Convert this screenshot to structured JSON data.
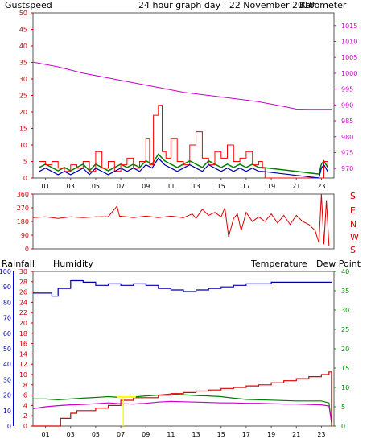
{
  "title": "24 hour graph day : 22 November 2010",
  "labels": {
    "gustspeed": "Gustspeed",
    "barometer": "Barometer",
    "rainfall": "Rainfall",
    "humidity": "Humidity",
    "temperature": "Temperature",
    "dew_point": "Dew Point",
    "compass": [
      "S",
      "E",
      "N",
      "W",
      "S"
    ]
  },
  "colors": {
    "gust": "#ff0000",
    "wind_avg_green": "#008000",
    "wind_avg_blue": "#0000aa",
    "barometer": "#cc00cc",
    "direction": "#dd0000",
    "rainfall": "#dd0000",
    "humidity": "#0000aa",
    "temperature": "#008000",
    "dew_point": "#cc00cc",
    "solar": "#ffff00"
  },
  "chart_data": [
    {
      "type": "line",
      "name": "wind-and-pressure",
      "x_ticks": [
        "01",
        "03",
        "05",
        "07",
        "09",
        "11",
        "13",
        "15",
        "17",
        "19",
        "21",
        "23"
      ],
      "left_axis": {
        "label": "Gustspeed",
        "ticks": [
          0,
          5,
          10,
          15,
          20,
          25,
          30,
          35,
          40,
          45,
          50
        ],
        "ylim": [
          0,
          50
        ]
      },
      "right_axis": {
        "label": "Barometer",
        "ticks": [
          970,
          975,
          980,
          985,
          990,
          995,
          1000,
          1005,
          1010,
          1015
        ],
        "ylim": [
          967,
          1019
        ]
      },
      "series": [
        {
          "name": "Gustspeed",
          "x": [
            0.5,
            1,
            1.5,
            2,
            2.5,
            3,
            3.5,
            4,
            4.5,
            5,
            5.5,
            6,
            6.5,
            7,
            7.5,
            8,
            8.5,
            9,
            9.3,
            9.6,
            10,
            10.3,
            10.6,
            11,
            11.5,
            12,
            12.5,
            13,
            13.5,
            14,
            14.5,
            15,
            15.5,
            16,
            16.5,
            17,
            17.5,
            18,
            18.3,
            18.5,
            20,
            22,
            22.5,
            23,
            23.2,
            23.5
          ],
          "y": [
            5,
            4,
            5,
            3,
            2,
            4,
            3,
            5,
            2,
            8,
            3,
            5,
            2,
            4,
            6,
            3,
            5,
            12,
            4,
            19,
            22,
            8,
            6,
            12,
            5,
            4,
            10,
            14,
            6,
            4,
            8,
            6,
            10,
            5,
            6,
            8,
            4,
            5,
            3,
            0,
            0,
            0,
            0,
            0,
            5,
            3
          ]
        },
        {
          "name": "Wind Average",
          "x": [
            0.5,
            1,
            1.5,
            2,
            2.5,
            3,
            3.5,
            4,
            4.5,
            5,
            5.5,
            6,
            6.5,
            7,
            7.5,
            8,
            8.5,
            9,
            9.5,
            10,
            10.5,
            11,
            11.5,
            12,
            12.5,
            13,
            13.5,
            14,
            14.5,
            15,
            15.5,
            16,
            16.5,
            17,
            17.5,
            18,
            18.3,
            22.8,
            23,
            23.2,
            23.5
          ],
          "y": [
            2,
            3,
            2,
            1,
            2,
            1,
            2,
            3,
            1,
            3,
            2,
            1,
            2,
            3,
            2,
            3,
            2,
            4,
            3,
            6,
            4,
            3,
            2,
            3,
            4,
            3,
            2,
            4,
            3,
            2,
            3,
            2,
            3,
            2,
            3,
            2,
            2,
            0,
            3,
            4,
            2
          ]
        },
        {
          "name": "Barometer",
          "x": [
            0,
            2,
            4,
            6,
            8,
            10,
            12,
            14,
            16,
            18,
            20,
            21,
            22,
            23,
            23.8
          ],
          "y": [
            1003.5,
            1002,
            1000,
            998.5,
            997,
            995.5,
            994,
            993,
            992,
            991,
            989.5,
            988.7,
            988.6,
            988.6,
            988.6
          ]
        }
      ]
    },
    {
      "type": "line",
      "name": "wind-direction",
      "y_ticks": [
        0,
        90,
        180,
        270,
        360
      ],
      "ylim": [
        0,
        360
      ],
      "series": [
        {
          "name": "Wind Direction",
          "x": [
            0,
            1,
            2,
            3,
            4,
            5,
            6,
            6.7,
            6.9,
            7.5,
            8,
            9,
            10,
            11,
            12,
            12.7,
            13,
            13.5,
            14,
            14.5,
            15,
            15.3,
            15.6,
            16,
            16.3,
            16.6,
            17,
            17.5,
            18,
            18.5,
            19,
            19.5,
            20,
            20.5,
            21,
            21.5,
            22,
            22.5,
            22.8,
            23,
            23.2,
            23.4,
            23.6
          ],
          "y": [
            205,
            210,
            200,
            210,
            205,
            210,
            212,
            280,
            215,
            210,
            205,
            215,
            205,
            215,
            205,
            230,
            200,
            260,
            220,
            240,
            210,
            270,
            80,
            200,
            230,
            120,
            240,
            180,
            210,
            180,
            230,
            170,
            220,
            160,
            220,
            180,
            160,
            120,
            40,
            360,
            30,
            320,
            20
          ]
        }
      ]
    },
    {
      "type": "line",
      "name": "rain-humidity-temperature",
      "left_axis_outer": {
        "label": "Humidity",
        "ticks": [
          0,
          10,
          20,
          30,
          40,
          50,
          60,
          70,
          80,
          90,
          100
        ]
      },
      "left_axis_inner": {
        "label": "Rainfall",
        "ticks": [
          0,
          2,
          4,
          6,
          8,
          10,
          12,
          14,
          16,
          18,
          20,
          22,
          24,
          26,
          28,
          30
        ]
      },
      "right_axis": {
        "label": "Temperature",
        "ticks": [
          0,
          5,
          10,
          15,
          20,
          25,
          30,
          35,
          40
        ]
      },
      "series": [
        {
          "name": "Rainfall",
          "x": [
            0,
            2,
            2.2,
            3,
            3.5,
            5,
            6,
            7,
            8,
            10,
            11,
            12,
            13,
            14,
            15,
            16,
            17,
            18,
            19,
            20,
            21,
            22,
            23,
            23.6,
            23.8
          ],
          "y": [
            0,
            0,
            1.5,
            2.5,
            3,
            3.5,
            4,
            5,
            5.5,
            6,
            6.3,
            6.5,
            6.8,
            7,
            7.3,
            7.5,
            7.8,
            8,
            8.4,
            8.8,
            9.2,
            9.6,
            10,
            10.5,
            0
          ]
        },
        {
          "name": "Humidity",
          "x": [
            0,
            1,
            1.5,
            2,
            3,
            4,
            5,
            6,
            7,
            8,
            9,
            10,
            11,
            12,
            13,
            14,
            15,
            16,
            17,
            18,
            19,
            20,
            21,
            22,
            23,
            23.8
          ],
          "y": [
            86,
            86,
            84,
            89,
            94,
            93,
            91,
            92,
            91,
            92,
            91,
            89,
            88,
            87,
            88,
            89,
            90,
            91,
            92,
            92,
            93,
            93,
            93,
            93,
            93,
            93
          ]
        },
        {
          "name": "Temperature",
          "x": [
            0,
            1,
            2,
            3,
            4,
            5,
            6,
            7,
            8,
            9,
            10,
            11,
            12,
            13,
            14,
            15,
            16,
            17,
            18,
            19,
            20,
            21,
            22,
            23,
            23.6,
            23.8
          ],
          "y": [
            7,
            7,
            6.8,
            7,
            7.2,
            7.4,
            7.6,
            7.4,
            7.5,
            7.8,
            8,
            8.3,
            8.1,
            7.9,
            7.8,
            7.6,
            7.2,
            6.9,
            6.8,
            6.7,
            6.6,
            6.5,
            6.5,
            6.5,
            6,
            1
          ]
        },
        {
          "name": "Dew Point",
          "x": [
            0,
            1,
            2,
            3,
            4,
            5,
            6,
            7,
            8,
            9,
            10,
            11,
            12,
            13,
            14,
            15,
            16,
            17,
            18,
            19,
            20,
            21,
            22,
            23,
            23.6,
            23.8
          ],
          "y": [
            4.5,
            5,
            5.3,
            5.5,
            5.6,
            5.8,
            6,
            5.8,
            5.7,
            5.9,
            6.2,
            6.4,
            6.3,
            6.2,
            6.1,
            6,
            6,
            5.9,
            5.9,
            5.8,
            5.7,
            5.7,
            5.6,
            5.5,
            5.2,
            1
          ]
        }
      ]
    }
  ]
}
